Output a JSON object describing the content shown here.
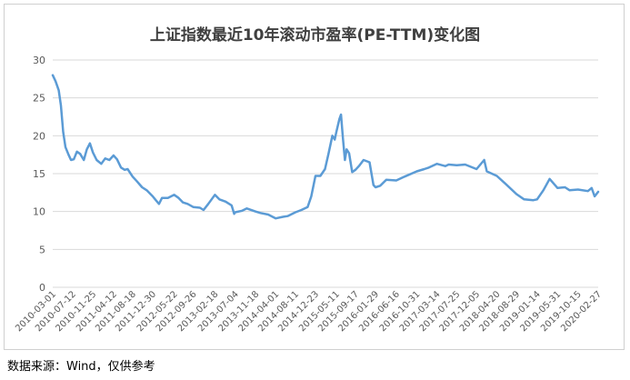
{
  "title": "上证指数最近10年滚动市盈率(PE-TTM)变化图",
  "source_note": "数据来源：Wind，仅供参考",
  "chart_data": {
    "type": "line",
    "title": "上证指数最近10年滚动市盈率(PE-TTM)变化图",
    "xlabel": "",
    "ylabel": "",
    "ylim": [
      0,
      30
    ],
    "yticks": [
      0,
      5,
      10,
      15,
      20,
      25,
      30
    ],
    "grid": "horizontal",
    "line_color": "#5b9bd5",
    "x_tick_labels": [
      "2010-03-01",
      "2010-07-12",
      "2010-11-25",
      "2011-04-12",
      "2011-08-18",
      "2011-12-30",
      "2012-05-22",
      "2012-09-26",
      "2013-02-18",
      "2013-07-04",
      "2013-11-18",
      "2014-04-01",
      "2014-08-11",
      "2014-12-23",
      "2015-05-11",
      "2015-09-17",
      "2016-01-29",
      "2016-06-16",
      "2016-10-31",
      "2017-03-14",
      "2017-07-25",
      "2017-12-05",
      "2018-04-20",
      "2018-08-29",
      "2019-01-14",
      "2019-05-31",
      "2019-10-15",
      "2020-02-27"
    ],
    "series": [
      {
        "values": [
          {
            "x": "2010-03-01",
            "y": 28.0
          },
          {
            "x": "2010-03-20",
            "y": 27.2
          },
          {
            "x": "2010-04-10",
            "y": 26.0
          },
          {
            "x": "2010-04-25",
            "y": 24.0
          },
          {
            "x": "2010-05-10",
            "y": 20.5
          },
          {
            "x": "2010-05-25",
            "y": 18.5
          },
          {
            "x": "2010-06-15",
            "y": 17.5
          },
          {
            "x": "2010-07-01",
            "y": 16.8
          },
          {
            "x": "2010-07-20",
            "y": 16.9
          },
          {
            "x": "2010-08-10",
            "y": 17.9
          },
          {
            "x": "2010-09-01",
            "y": 17.6
          },
          {
            "x": "2010-09-25",
            "y": 16.8
          },
          {
            "x": "2010-10-15",
            "y": 18.2
          },
          {
            "x": "2010-11-05",
            "y": 19.0
          },
          {
            "x": "2010-11-25",
            "y": 17.8
          },
          {
            "x": "2010-12-20",
            "y": 16.8
          },
          {
            "x": "2011-01-20",
            "y": 16.3
          },
          {
            "x": "2011-02-15",
            "y": 17.0
          },
          {
            "x": "2011-03-15",
            "y": 16.8
          },
          {
            "x": "2011-04-12",
            "y": 17.4
          },
          {
            "x": "2011-05-05",
            "y": 16.9
          },
          {
            "x": "2011-06-01",
            "y": 15.8
          },
          {
            "x": "2011-06-25",
            "y": 15.5
          },
          {
            "x": "2011-07-15",
            "y": 15.6
          },
          {
            "x": "2011-08-18",
            "y": 14.6
          },
          {
            "x": "2011-09-15",
            "y": 14.0
          },
          {
            "x": "2011-10-20",
            "y": 13.2
          },
          {
            "x": "2011-11-20",
            "y": 12.8
          },
          {
            "x": "2011-12-30",
            "y": 12.0
          },
          {
            "x": "2012-01-20",
            "y": 11.5
          },
          {
            "x": "2012-02-10",
            "y": 11.0
          },
          {
            "x": "2012-03-01",
            "y": 11.8
          },
          {
            "x": "2012-04-10",
            "y": 11.8
          },
          {
            "x": "2012-05-22",
            "y": 12.2
          },
          {
            "x": "2012-06-20",
            "y": 11.8
          },
          {
            "x": "2012-07-20",
            "y": 11.2
          },
          {
            "x": "2012-08-20",
            "y": 11.0
          },
          {
            "x": "2012-09-26",
            "y": 10.6
          },
          {
            "x": "2012-11-10",
            "y": 10.5
          },
          {
            "x": "2012-12-04",
            "y": 10.2
          },
          {
            "x": "2013-01-05",
            "y": 11.0
          },
          {
            "x": "2013-02-18",
            "y": 12.2
          },
          {
            "x": "2013-03-20",
            "y": 11.6
          },
          {
            "x": "2013-05-01",
            "y": 11.3
          },
          {
            "x": "2013-06-10",
            "y": 10.8
          },
          {
            "x": "2013-06-27",
            "y": 9.7
          },
          {
            "x": "2013-07-04",
            "y": 9.9
          },
          {
            "x": "2013-08-20",
            "y": 10.1
          },
          {
            "x": "2013-09-20",
            "y": 10.4
          },
          {
            "x": "2013-11-18",
            "y": 10.0
          },
          {
            "x": "2013-12-20",
            "y": 9.8
          },
          {
            "x": "2014-02-10",
            "y": 9.6
          },
          {
            "x": "2014-04-01",
            "y": 9.1
          },
          {
            "x": "2014-05-20",
            "y": 9.3
          },
          {
            "x": "2014-06-20",
            "y": 9.4
          },
          {
            "x": "2014-08-11",
            "y": 9.9
          },
          {
            "x": "2014-09-20",
            "y": 10.2
          },
          {
            "x": "2014-11-01",
            "y": 10.6
          },
          {
            "x": "2014-11-25",
            "y": 12.0
          },
          {
            "x": "2014-12-23",
            "y": 14.7
          },
          {
            "x": "2015-01-25",
            "y": 14.7
          },
          {
            "x": "2015-02-25",
            "y": 15.6
          },
          {
            "x": "2015-03-20",
            "y": 17.6
          },
          {
            "x": "2015-04-15",
            "y": 20.0
          },
          {
            "x": "2015-05-01",
            "y": 19.5
          },
          {
            "x": "2015-05-11",
            "y": 20.4
          },
          {
            "x": "2015-06-01",
            "y": 22.2
          },
          {
            "x": "2015-06-12",
            "y": 22.8
          },
          {
            "x": "2015-06-25",
            "y": 19.7
          },
          {
            "x": "2015-07-08",
            "y": 16.8
          },
          {
            "x": "2015-07-20",
            "y": 18.2
          },
          {
            "x": "2015-08-05",
            "y": 17.7
          },
          {
            "x": "2015-08-26",
            "y": 15.2
          },
          {
            "x": "2015-09-17",
            "y": 15.5
          },
          {
            "x": "2015-10-10",
            "y": 16.0
          },
          {
            "x": "2015-11-10",
            "y": 16.8
          },
          {
            "x": "2015-12-20",
            "y": 16.5
          },
          {
            "x": "2016-01-15",
            "y": 13.5
          },
          {
            "x": "2016-01-29",
            "y": 13.2
          },
          {
            "x": "2016-03-01",
            "y": 13.4
          },
          {
            "x": "2016-04-10",
            "y": 14.2
          },
          {
            "x": "2016-06-16",
            "y": 14.1
          },
          {
            "x": "2016-08-10",
            "y": 14.6
          },
          {
            "x": "2016-10-31",
            "y": 15.3
          },
          {
            "x": "2016-12-20",
            "y": 15.6
          },
          {
            "x": "2017-01-20",
            "y": 15.8
          },
          {
            "x": "2017-03-14",
            "y": 16.3
          },
          {
            "x": "2017-05-10",
            "y": 16.0
          },
          {
            "x": "2017-06-01",
            "y": 16.2
          },
          {
            "x": "2017-07-25",
            "y": 16.1
          },
          {
            "x": "2017-09-20",
            "y": 16.2
          },
          {
            "x": "2017-12-05",
            "y": 15.6
          },
          {
            "x": "2018-01-25",
            "y": 16.8
          },
          {
            "x": "2018-02-12",
            "y": 15.3
          },
          {
            "x": "2018-04-20",
            "y": 14.7
          },
          {
            "x": "2018-06-20",
            "y": 13.6
          },
          {
            "x": "2018-08-29",
            "y": 12.3
          },
          {
            "x": "2018-10-19",
            "y": 11.6
          },
          {
            "x": "2018-12-20",
            "y": 11.5
          },
          {
            "x": "2019-01-14",
            "y": 11.6
          },
          {
            "x": "2019-02-25",
            "y": 12.8
          },
          {
            "x": "2019-04-08",
            "y": 14.3
          },
          {
            "x": "2019-05-31",
            "y": 13.1
          },
          {
            "x": "2019-07-20",
            "y": 13.2
          },
          {
            "x": "2019-08-20",
            "y": 12.8
          },
          {
            "x": "2019-10-15",
            "y": 12.9
          },
          {
            "x": "2019-12-20",
            "y": 12.7
          },
          {
            "x": "2020-01-14",
            "y": 13.1
          },
          {
            "x": "2020-02-03",
            "y": 12.0
          },
          {
            "x": "2020-02-27",
            "y": 12.6
          }
        ]
      }
    ]
  }
}
